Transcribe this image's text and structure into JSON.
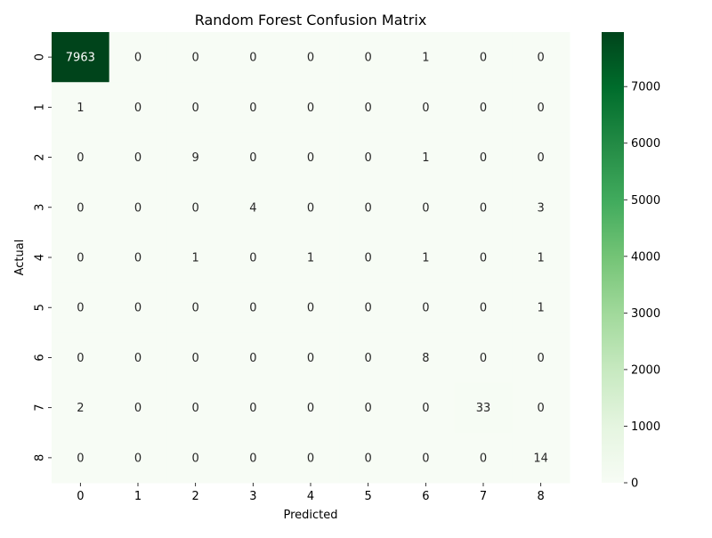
{
  "chart_data": {
    "type": "heatmap",
    "title": "Random Forest Confusion Matrix",
    "xlabel": "Predicted",
    "ylabel": "Actual",
    "x_categories": [
      "0",
      "1",
      "2",
      "3",
      "4",
      "5",
      "6",
      "7",
      "8"
    ],
    "y_categories": [
      "0",
      "1",
      "2",
      "3",
      "4",
      "5",
      "6",
      "7",
      "8"
    ],
    "values": [
      [
        7963,
        0,
        0,
        0,
        0,
        0,
        1,
        0,
        0
      ],
      [
        1,
        0,
        0,
        0,
        0,
        0,
        0,
        0,
        0
      ],
      [
        0,
        0,
        9,
        0,
        0,
        0,
        1,
        0,
        0
      ],
      [
        0,
        0,
        0,
        4,
        0,
        0,
        0,
        0,
        3
      ],
      [
        0,
        0,
        1,
        0,
        1,
        0,
        1,
        0,
        1
      ],
      [
        0,
        0,
        0,
        0,
        0,
        0,
        0,
        0,
        1
      ],
      [
        0,
        0,
        0,
        0,
        0,
        0,
        8,
        0,
        0
      ],
      [
        2,
        0,
        0,
        0,
        0,
        0,
        0,
        33,
        0
      ],
      [
        0,
        0,
        0,
        0,
        0,
        0,
        0,
        0,
        14
      ]
    ],
    "colormap": "Greens",
    "colorbar": {
      "min": 0,
      "max": 7963,
      "ticks": [
        0,
        1000,
        2000,
        3000,
        4000,
        5000,
        6000,
        7000
      ]
    },
    "annotations": true,
    "grid": false
  }
}
